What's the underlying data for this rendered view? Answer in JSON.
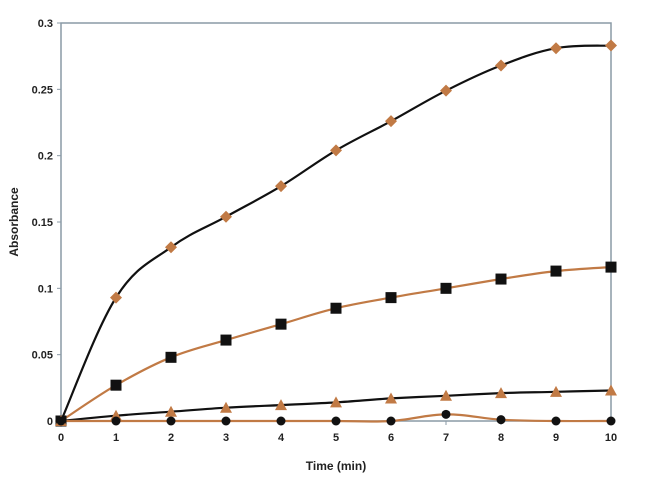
{
  "chart_data": {
    "type": "line",
    "title": "",
    "xlabel": "Time (min)",
    "ylabel": "Absorbance",
    "xlim": [
      0,
      10
    ],
    "ylim": [
      0,
      0.3
    ],
    "x_ticks": [
      "0",
      "1",
      "2",
      "3",
      "4",
      "5",
      "6",
      "7",
      "8",
      "9",
      "10"
    ],
    "y_ticks": [
      "0",
      "0.05",
      "0.1",
      "0.15",
      "0.2",
      "0.25",
      "0.3"
    ],
    "grid": false,
    "legend": "none",
    "x": [
      0,
      1,
      2,
      3,
      4,
      5,
      6,
      7,
      8,
      9,
      10
    ],
    "series": [
      {
        "marker": "diamond",
        "line_color": "#111111",
        "marker_color": "#c17a45",
        "values": [
          0,
          0.093,
          0.131,
          0.154,
          0.177,
          0.204,
          0.226,
          0.249,
          0.268,
          0.281,
          0.283
        ]
      },
      {
        "marker": "square",
        "line_color": "#c17a45",
        "marker_color": "#111111",
        "values": [
          0,
          0.027,
          0.048,
          0.061,
          0.073,
          0.085,
          0.093,
          0.1,
          0.107,
          0.113,
          0.116
        ]
      },
      {
        "marker": "triangle",
        "line_color": "#111111",
        "marker_color": "#c17a45",
        "values": [
          0,
          0.004,
          0.007,
          0.01,
          0.012,
          0.014,
          0.017,
          0.019,
          0.021,
          0.022,
          0.023
        ]
      },
      {
        "marker": "circle",
        "line_color": "#c17a45",
        "marker_color": "#111111",
        "values": [
          0,
          0,
          0,
          0,
          0,
          0,
          0,
          0.005,
          0.001,
          0,
          0
        ]
      }
    ],
    "colors": {
      "axis": "#8a9aa6",
      "frame": "#8a9aa6"
    }
  }
}
